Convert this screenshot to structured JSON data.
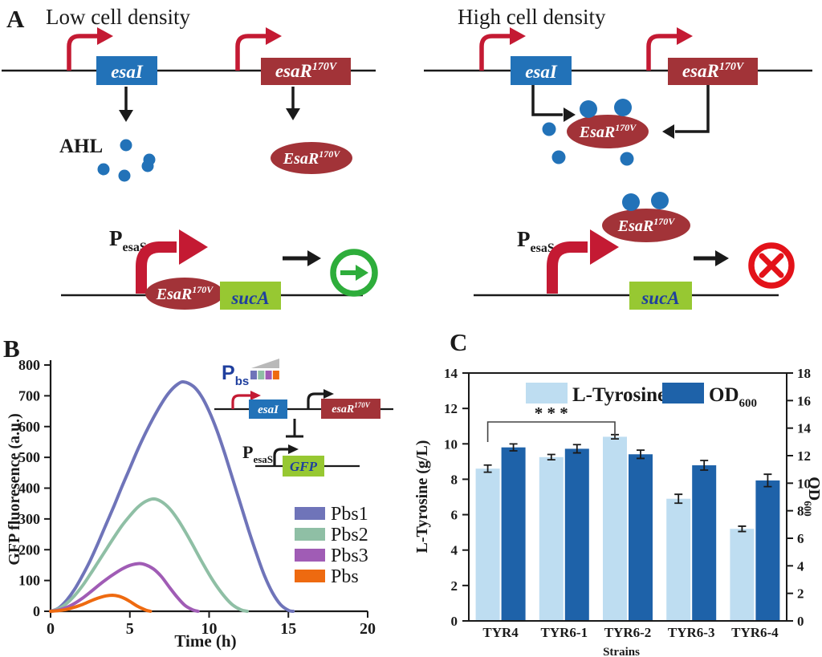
{
  "figure": {
    "panel_a": "A",
    "panel_b": "B",
    "panel_c": "C"
  },
  "panelA": {
    "low_title": "Low cell density",
    "high_title": "High cell density",
    "esaI": "esaI",
    "esaR_base": "esaR",
    "esaR_sup": "170V",
    "EsaR_base": "EsaR",
    "EsaR_sup": "170V",
    "ahl": "AHL",
    "p_base": "P",
    "p_sub": "esaS",
    "sucA": "sucA",
    "colors": {
      "gene_blue": "#2272B8",
      "gene_red": "#A23338",
      "promoter_red": "#C41A33",
      "gene_green": "#97C832",
      "dot_blue": "#2272B8",
      "go_green": "#2EAD3B",
      "stop_red": "#E31219",
      "gradient_gray": "#B9B9B9"
    }
  },
  "panelB": {
    "inset": {
      "pbs_base": "P",
      "pbs_sub": "bs",
      "esaI": "esaI",
      "esaR_base": "esaR",
      "esaR_sup": "170V",
      "p_base": "P",
      "p_sub": "esaS",
      "gfp": "GFP"
    }
  },
  "panelC": {
    "od_base": "OD",
    "od_sub": "600"
  },
  "chart_data": [
    {
      "id": "panelB-gfp-curves",
      "type": "line",
      "title": "",
      "xlabel": "Time (h)",
      "ylabel": "GFP fluoresence (a.u.)",
      "xlim": [
        0,
        20
      ],
      "ylim": [
        0,
        800
      ],
      "xticks": [
        0,
        5,
        10,
        15,
        20
      ],
      "yticks": [
        0,
        100,
        200,
        300,
        400,
        500,
        600,
        700,
        800
      ],
      "grid": false,
      "legend_position": "right",
      "series": [
        {
          "name": "Pbs1",
          "color": "#6F74B9",
          "points": [
            [
              0,
              0
            ],
            [
              0.5,
              10
            ],
            [
              1,
              35
            ],
            [
              1.5,
              70
            ],
            [
              2,
              115
            ],
            [
              2.5,
              165
            ],
            [
              3,
              222
            ],
            [
              3.5,
              282
            ],
            [
              4,
              342
            ],
            [
              4.5,
              405
            ],
            [
              5,
              465
            ],
            [
              5.5,
              525
            ],
            [
              6,
              580
            ],
            [
              6.5,
              630
            ],
            [
              7,
              675
            ],
            [
              7.5,
              712
            ],
            [
              8,
              737
            ],
            [
              8.4,
              745
            ],
            [
              9,
              731
            ],
            [
              9.5,
              700
            ],
            [
              10,
              650
            ],
            [
              10.5,
              586
            ],
            [
              11,
              510
            ],
            [
              11.5,
              428
            ],
            [
              12,
              345
            ],
            [
              12.5,
              262
            ],
            [
              13,
              185
            ],
            [
              13.5,
              115
            ],
            [
              14,
              60
            ],
            [
              14.5,
              22
            ],
            [
              15,
              3
            ],
            [
              15.3,
              0
            ]
          ]
        },
        {
          "name": "Pbs2",
          "color": "#8FBFA5",
          "points": [
            [
              0,
              0
            ],
            [
              0.5,
              8
            ],
            [
              1,
              25
            ],
            [
              1.5,
              50
            ],
            [
              2,
              82
            ],
            [
              2.5,
              120
            ],
            [
              3,
              160
            ],
            [
              3.5,
              200
            ],
            [
              4,
              240
            ],
            [
              4.5,
              278
            ],
            [
              5,
              310
            ],
            [
              5.5,
              338
            ],
            [
              6,
              357
            ],
            [
              6.5,
              365
            ],
            [
              7,
              356
            ],
            [
              7.5,
              334
            ],
            [
              8,
              300
            ],
            [
              8.5,
              258
            ],
            [
              9,
              212
            ],
            [
              9.5,
              165
            ],
            [
              10,
              120
            ],
            [
              10.5,
              80
            ],
            [
              11,
              46
            ],
            [
              11.5,
              20
            ],
            [
              12,
              5
            ],
            [
              12.4,
              0
            ]
          ]
        },
        {
          "name": "Pbs3",
          "color": "#A05CB5",
          "points": [
            [
              0,
              0
            ],
            [
              0.5,
              4
            ],
            [
              1,
              12
            ],
            [
              1.5,
              25
            ],
            [
              2,
              42
            ],
            [
              2.5,
              62
            ],
            [
              3,
              83
            ],
            [
              3.5,
              103
            ],
            [
              4,
              121
            ],
            [
              4.5,
              137
            ],
            [
              5,
              149
            ],
            [
              5.6,
              155
            ],
            [
              6,
              151
            ],
            [
              6.5,
              137
            ],
            [
              7,
              112
            ],
            [
              7.5,
              78
            ],
            [
              8,
              45
            ],
            [
              8.5,
              18
            ],
            [
              9,
              4
            ],
            [
              9.3,
              0
            ]
          ]
        },
        {
          "name": "Pbs",
          "color": "#EE6A10",
          "points": [
            [
              0,
              0
            ],
            [
              0.5,
              2
            ],
            [
              1,
              6
            ],
            [
              1.5,
              13
            ],
            [
              2,
              22
            ],
            [
              2.5,
              33
            ],
            [
              3,
              43
            ],
            [
              3.5,
              50
            ],
            [
              3.9,
              52
            ],
            [
              4.3,
              49
            ],
            [
              4.7,
              41
            ],
            [
              5,
              32
            ],
            [
              5.5,
              16
            ],
            [
              6,
              4
            ],
            [
              6.3,
              0
            ]
          ]
        }
      ]
    },
    {
      "id": "panelC-tyrosine-bars",
      "type": "bar",
      "title": "",
      "categories": [
        "TYR4",
        "TYR6-1",
        "TYR6-2",
        "TYR6-3",
        "TYR6-4"
      ],
      "xlabel": "Strains",
      "ylabel_left": "L-Tyrosine (g/L)",
      "ylabel_right": "OD600",
      "ylim_left": [
        0,
        14
      ],
      "ylim_right": [
        0,
        18
      ],
      "yticks_left": [
        0,
        2,
        4,
        6,
        8,
        10,
        12,
        14
      ],
      "yticks_right": [
        0,
        2,
        4,
        6,
        8,
        10,
        12,
        14,
        16,
        18
      ],
      "grid": false,
      "legend_position": "top",
      "series": [
        {
          "name": "L-Tyrosine",
          "axis": "left",
          "color": "#BEDDF1",
          "values": [
            8.6,
            9.25,
            10.4,
            6.9,
            5.2
          ],
          "errors": [
            0.2,
            0.15,
            0.12,
            0.25,
            0.15
          ]
        },
        {
          "name": "OD600",
          "axis": "right",
          "color": "#1E62A9",
          "values": [
            12.6,
            12.5,
            12.1,
            11.3,
            10.2
          ],
          "errors": [
            0.25,
            0.3,
            0.3,
            0.35,
            0.45
          ]
        }
      ],
      "significance": {
        "text": "* * *",
        "from": "TYR4",
        "to": "TYR6-2"
      }
    }
  ]
}
